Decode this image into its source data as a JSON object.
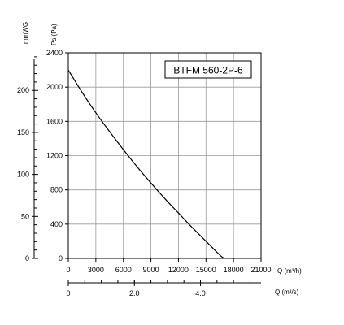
{
  "chart_data": {
    "type": "line",
    "model_label": "BTFM 560-2P-6",
    "primary_y": {
      "label": "Ps (Pa)",
      "range": [
        0,
        2400
      ],
      "ticks": [
        0,
        400,
        800,
        1200,
        1600,
        2000,
        2400
      ]
    },
    "secondary_y": {
      "label": "mmWG",
      "ticks": [
        0,
        50,
        100,
        150,
        200
      ]
    },
    "x_primary": {
      "label": "Q (m³/h)",
      "range": [
        0,
        21000
      ],
      "ticks": [
        0,
        3000,
        6000,
        9000,
        12000,
        15000,
        18000,
        21000
      ]
    },
    "x_secondary": {
      "label": "Q (m³/s)",
      "ticks": [
        0,
        2.0,
        4.0
      ],
      "tick_labels": [
        "0",
        "2.0",
        "4.0"
      ]
    },
    "grid": true,
    "series": [
      {
        "x": [
          0,
          1500,
          3000,
          4500,
          6000,
          7500,
          9000,
          10500,
          12000,
          13500,
          15000,
          16500,
          17000
        ],
        "y": [
          2200,
          1940,
          1700,
          1480,
          1270,
          1070,
          880,
          700,
          530,
          360,
          200,
          40,
          0
        ]
      }
    ]
  }
}
